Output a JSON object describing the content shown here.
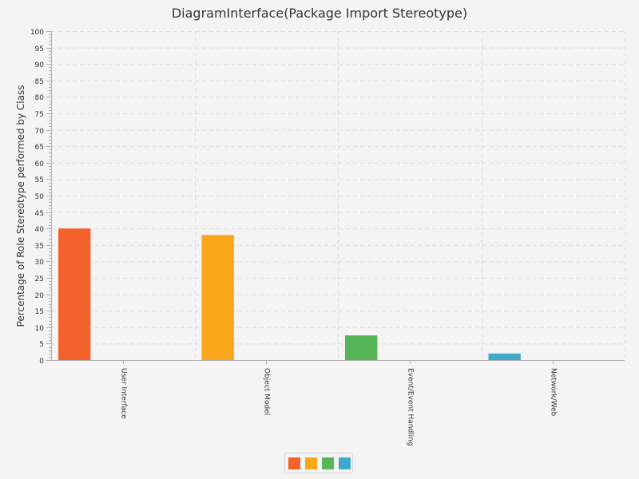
{
  "chart_data": {
    "type": "bar",
    "title": "DiagramInterface(Package Import Stereotype)",
    "xlabel": "",
    "ylabel": "Percentage of Role Stereotype performed by Class",
    "ylim": [
      0,
      100
    ],
    "y_major_step": 5,
    "y_minor_step": 1,
    "categories": [
      "User Interface",
      "Object Model",
      "Event/Event Handling",
      "Network/Web"
    ],
    "series": [
      {
        "name": "User Interface",
        "color": "#f3622d",
        "values": [
          40,
          0,
          0,
          0
        ]
      },
      {
        "name": "Object Model",
        "color": "#fba71b",
        "values": [
          0,
          38,
          0,
          0
        ]
      },
      {
        "name": "Event/Event Handling",
        "color": "#57b757",
        "values": [
          0,
          0,
          7.5,
          0
        ]
      },
      {
        "name": "Network/Web",
        "color": "#41a9c9",
        "values": [
          0,
          0,
          0,
          2
        ]
      }
    ],
    "grid": true,
    "legend_position": "bottom-center",
    "legend_shows_labels": false
  }
}
